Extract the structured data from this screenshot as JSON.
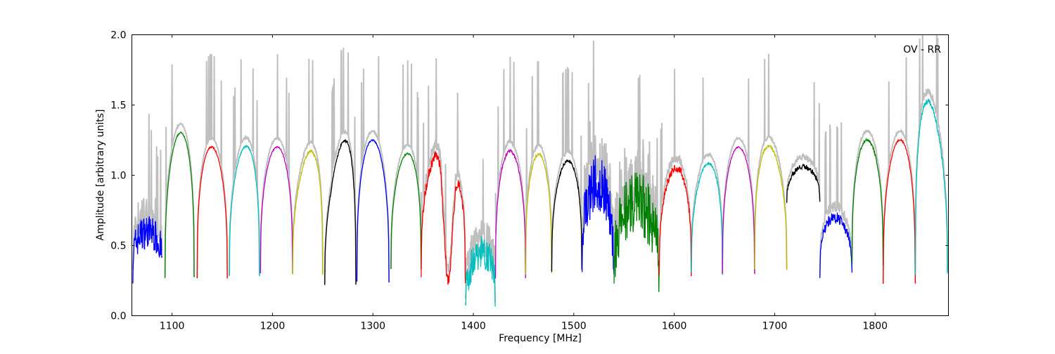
{
  "chart_data": {
    "type": "line",
    "title": "",
    "annotation": "OV - RR",
    "xlabel": "Frequency [MHz]",
    "ylabel": "Amplitude [arbitrary units]",
    "xlim": [
      1060,
      1873
    ],
    "ylim": [
      0.0,
      2.0
    ],
    "xticks": [
      1100,
      1200,
      1300,
      1400,
      1500,
      1600,
      1700,
      1800
    ],
    "yticks": [
      0.0,
      0.5,
      1.0,
      1.5,
      2.0
    ],
    "ytick_labels": [
      "0.0",
      "0.5",
      "1.0",
      "1.5",
      "2.0"
    ],
    "grid": false,
    "envelope": {
      "name": "envelope",
      "color": "#bfbfbf",
      "offset": 0.06
    },
    "subbands": [
      {
        "start": 1061,
        "end": 1090,
        "edge": 0.35,
        "peak": 0.6,
        "tilt": 0.0,
        "noise": 0.12,
        "color": "#0000ff"
      },
      {
        "start": 1093,
        "end": 1122,
        "edge": 0.27,
        "peak": 1.3,
        "tilt": 0.15,
        "noise": 0.005,
        "color": "#008000"
      },
      {
        "start": 1125,
        "end": 1155,
        "edge": 0.27,
        "peak": 1.2,
        "tilt": -0.08,
        "noise": 0.005,
        "color": "#ff0000"
      },
      {
        "start": 1157,
        "end": 1187,
        "edge": 0.28,
        "peak": 1.2,
        "tilt": 0.2,
        "noise": 0.005,
        "color": "#00bfbf"
      },
      {
        "start": 1188,
        "end": 1220,
        "edge": 0.3,
        "peak": 1.2,
        "tilt": 0.06,
        "noise": 0.005,
        "color": "#bf00bf"
      },
      {
        "start": 1220,
        "end": 1250,
        "edge": 0.3,
        "peak": 1.15,
        "tilt": 0.35,
        "noise": 0.01,
        "color": "#bfbf00"
      },
      {
        "start": 1252,
        "end": 1283,
        "edge": 0.22,
        "peak": 1.2,
        "tilt": 0.6,
        "noise": 0.01,
        "color": "#000000"
      },
      {
        "start": 1284,
        "end": 1316,
        "edge": 0.24,
        "peak": 1.25,
        "tilt": -0.05,
        "noise": 0.005,
        "color": "#0000ff"
      },
      {
        "start": 1318,
        "end": 1348,
        "edge": 0.33,
        "peak": 1.15,
        "tilt": 0.15,
        "noise": 0.005,
        "color": "#008000"
      },
      {
        "start": 1348,
        "end": 1392,
        "edge": 0.27,
        "peak": 1.2,
        "tilt": 0.0,
        "noise": 0.04,
        "color": "#ff0000",
        "dip": [
          1375,
          0.25
        ]
      },
      {
        "start": 1392,
        "end": 1422,
        "edge": 0.05,
        "peak": 0.45,
        "tilt": 0.1,
        "noise": 0.12,
        "color": "#00bfbf"
      },
      {
        "start": 1422,
        "end": 1452,
        "edge": 0.27,
        "peak": 1.17,
        "tilt": -0.05,
        "noise": 0.01,
        "color": "#bf00bf"
      },
      {
        "start": 1452,
        "end": 1478,
        "edge": 0.3,
        "peak": 1.15,
        "tilt": 0.0,
        "noise": 0.01,
        "color": "#bfbf00"
      },
      {
        "start": 1478,
        "end": 1508,
        "edge": 0.32,
        "peak": 1.1,
        "tilt": 0.12,
        "noise": 0.01,
        "color": "#000000"
      },
      {
        "start": 1508,
        "end": 1540,
        "edge": 0.22,
        "peak": 0.95,
        "tilt": 0.0,
        "noise": 0.2,
        "color": "#0000ff"
      },
      {
        "start": 1540,
        "end": 1585,
        "edge": 0.18,
        "peak": 0.8,
        "tilt": 0.0,
        "noise": 0.22,
        "color": "#008000"
      },
      {
        "start": 1585,
        "end": 1617,
        "edge": 0.27,
        "peak": 1.05,
        "tilt": 0.1,
        "noise": 0.03,
        "color": "#ff0000"
      },
      {
        "start": 1617,
        "end": 1648,
        "edge": 0.3,
        "peak": 1.08,
        "tilt": 0.15,
        "noise": 0.01,
        "color": "#00bfbf"
      },
      {
        "start": 1648,
        "end": 1680,
        "edge": 0.3,
        "peak": 1.2,
        "tilt": 0.0,
        "noise": 0.005,
        "color": "#bf00bf"
      },
      {
        "start": 1680,
        "end": 1712,
        "edge": 0.33,
        "peak": 1.2,
        "tilt": -0.2,
        "noise": 0.01,
        "color": "#bfbf00"
      },
      {
        "start": 1712,
        "end": 1745,
        "edge": 0.8,
        "peak": 1.06,
        "tilt": 0.0,
        "noise": 0.02,
        "color": "#000000"
      },
      {
        "start": 1745,
        "end": 1777,
        "edge": 0.3,
        "peak": 0.7,
        "tilt": -0.05,
        "noise": 0.04,
        "color": "#0000ff"
      },
      {
        "start": 1777,
        "end": 1808,
        "edge": 0.36,
        "peak": 1.25,
        "tilt": -0.05,
        "noise": 0.01,
        "color": "#008000"
      },
      {
        "start": 1808,
        "end": 1840,
        "edge": 0.23,
        "peak": 1.25,
        "tilt": 0.1,
        "noise": 0.005,
        "color": "#ff0000"
      },
      {
        "start": 1840,
        "end": 1872,
        "edge": 0.3,
        "peak": 1.5,
        "tilt": -0.5,
        "noise": 0.02,
        "color": "#00bfbf"
      }
    ]
  }
}
